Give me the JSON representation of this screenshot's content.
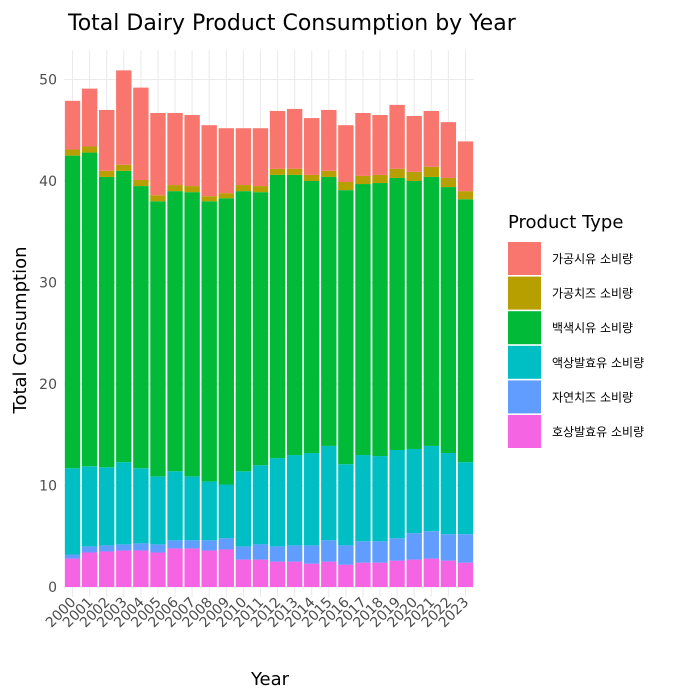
{
  "chart_data": {
    "type": "bar",
    "stacked": true,
    "title": "Total Dairy Product Consumption by Year",
    "xlabel": "Year",
    "ylabel": "Total Consumption",
    "ylim": [
      0,
      53
    ],
    "yticks": [
      0,
      10,
      20,
      30,
      40,
      50
    ],
    "grid": true,
    "legend_title": "Product Type",
    "legend_position": "right",
    "categories": [
      "2000",
      "2001",
      "2002",
      "2003",
      "2004",
      "2005",
      "2006",
      "2007",
      "2008",
      "2009",
      "2010",
      "2011",
      "2012",
      "2013",
      "2014",
      "2015",
      "2016",
      "2017",
      "2018",
      "2019",
      "2020",
      "2021",
      "2022",
      "2023"
    ],
    "series": [
      {
        "name": "호상발효유 소비량",
        "color": "#F564E3",
        "values": [
          2.8,
          3.4,
          3.5,
          3.6,
          3.6,
          3.4,
          3.8,
          3.8,
          3.6,
          3.7,
          2.7,
          2.7,
          2.5,
          2.5,
          2.3,
          2.5,
          2.2,
          2.4,
          2.4,
          2.6,
          2.7,
          2.8,
          2.6,
          2.4
        ]
      },
      {
        "name": "자연치즈 소비량",
        "color": "#619CFF",
        "values": [
          0.4,
          0.6,
          0.6,
          0.6,
          0.7,
          0.8,
          0.8,
          0.8,
          1.0,
          1.1,
          1.3,
          1.5,
          1.5,
          1.6,
          1.8,
          2.1,
          1.9,
          2.1,
          2.1,
          2.2,
          2.6,
          2.7,
          2.6,
          2.8
        ]
      },
      {
        "name": "액상발효유 소비량",
        "color": "#00BFC4",
        "values": [
          8.5,
          7.9,
          7.7,
          8.1,
          7.4,
          6.7,
          6.8,
          6.3,
          5.8,
          5.3,
          7.4,
          7.8,
          8.7,
          8.9,
          9.1,
          9.3,
          8.0,
          8.5,
          8.4,
          8.7,
          8.3,
          8.4,
          8.0,
          7.1
        ]
      },
      {
        "name": "백색시유 소비량",
        "color": "#00BA38",
        "values": [
          30.8,
          30.9,
          28.6,
          28.7,
          27.8,
          27.1,
          27.6,
          28.0,
          27.6,
          28.2,
          27.6,
          26.9,
          27.9,
          27.6,
          26.8,
          26.5,
          27.0,
          26.7,
          26.9,
          26.8,
          26.4,
          26.5,
          26.2,
          25.9
        ]
      },
      {
        "name": "가공치즈 소비량",
        "color": "#B79F00",
        "values": [
          0.6,
          0.6,
          0.6,
          0.6,
          0.6,
          0.6,
          0.6,
          0.6,
          0.5,
          0.5,
          0.6,
          0.6,
          0.6,
          0.6,
          0.6,
          0.6,
          0.8,
          0.8,
          0.8,
          0.9,
          0.9,
          1.0,
          0.9,
          0.8
        ]
      },
      {
        "name": "가공시유 소비량",
        "color": "#F8766D",
        "values": [
          4.8,
          5.7,
          6.0,
          9.3,
          9.1,
          8.1,
          7.1,
          7.0,
          7.0,
          6.4,
          5.6,
          5.7,
          5.7,
          5.9,
          5.6,
          6.0,
          5.6,
          6.2,
          5.9,
          6.3,
          5.5,
          5.5,
          5.5,
          4.9
        ]
      }
    ],
    "legend_order": [
      "가공시유 소비량",
      "가공치즈 소비량",
      "백색시유 소비량",
      "액상발효유 소비량",
      "자연치즈 소비량",
      "호상발효유 소비량"
    ]
  }
}
